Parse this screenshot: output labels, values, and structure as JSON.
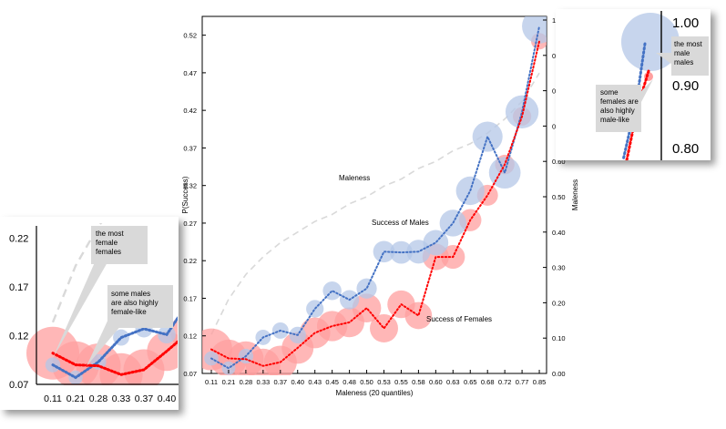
{
  "chart_data": [
    {
      "type": "scatter",
      "xlabel": "Maleness (20 quantiles)",
      "ylabel": "P(Success)",
      "y2label": "Maleness",
      "ylim": [
        0.07,
        0.545
      ],
      "yticks": [
        0.07,
        0.12,
        0.17,
        0.22,
        0.27,
        0.32,
        0.37,
        0.42,
        0.47,
        0.52
      ],
      "y2lim": [
        0,
        1
      ],
      "y2ticks": [
        0.0,
        0.1,
        0.2,
        0.3,
        0.4,
        0.5,
        0.6,
        0.7,
        0.8,
        0.9,
        1.0
      ],
      "categories": [
        "0.11",
        "0.21",
        "0.28",
        "0.33",
        "0.37",
        "0.40",
        "0.43",
        "0.45",
        "0.48",
        "0.50",
        "0.53",
        "0.55",
        "0.58",
        "0.60",
        "0.63",
        "0.65",
        "0.68",
        "0.72",
        "0.77",
        "0.85"
      ],
      "grid": false,
      "series": [
        {
          "name": "Success of Males",
          "color": "#4472c4",
          "bubble_color": "#b4c7e7",
          "values": [
            0.09,
            0.077,
            0.093,
            0.118,
            0.127,
            0.121,
            0.156,
            0.18,
            0.168,
            0.183,
            0.232,
            0.231,
            0.232,
            0.244,
            0.27,
            0.313,
            0.385,
            0.337,
            0.418,
            0.532
          ],
          "bubble_sizes": [
            0.04,
            0.03,
            0.05,
            0.06,
            0.08,
            0.09,
            0.11,
            0.14,
            0.16,
            0.19,
            0.24,
            0.28,
            0.33,
            0.4,
            0.48,
            0.58,
            0.68,
            0.78,
            0.88,
            1.0
          ]
        },
        {
          "name": "Success of Females",
          "color": "#ff0000",
          "bubble_color": "#ff9f9f",
          "values": [
            0.102,
            0.09,
            0.089,
            0.08,
            0.085,
            0.104,
            0.124,
            0.133,
            0.138,
            0.157,
            0.13,
            0.162,
            0.147,
            0.225,
            0.225,
            0.274,
            0.307,
            0.348,
            0.412,
            0.512
          ],
          "bubble_sizes": [
            1.0,
            0.75,
            0.66,
            0.6,
            0.53,
            0.48,
            0.44,
            0.42,
            0.4,
            0.36,
            0.34,
            0.32,
            0.3,
            0.28,
            0.2,
            0.16,
            0.13,
            0.1,
            0.08,
            0.05
          ]
        },
        {
          "name": "Maleness",
          "axis": "right",
          "color": "#d9d9d9",
          "values": [
            0.11,
            0.21,
            0.28,
            0.33,
            0.37,
            0.4,
            0.43,
            0.45,
            0.48,
            0.5,
            0.53,
            0.55,
            0.58,
            0.6,
            0.63,
            0.65,
            0.68,
            0.72,
            0.77,
            0.85
          ]
        }
      ],
      "annotations": [
        "Maleness",
        "Success of Males",
        "Success of Females"
      ]
    },
    {
      "type": "scatter",
      "panel": "zoom-left",
      "ylim": [
        0.07,
        0.225
      ],
      "yticks": [
        0.07,
        0.12,
        0.17,
        0.22
      ],
      "categories": [
        "0.11",
        "0.21",
        "0.28",
        "0.33",
        "0.37",
        "0.40"
      ],
      "callouts": [
        "the most\nfemale\nfemales",
        "some males\nare also highly\nfemale-like"
      ]
    },
    {
      "type": "scatter",
      "panel": "zoom-right",
      "y2lim": [
        0.78,
        1.02
      ],
      "y2ticks": [
        0.8,
        0.9,
        1.0
      ],
      "callouts": [
        "the most\nmale\nmales",
        "some\nfemales are\nalso highly\nmale-like"
      ]
    }
  ]
}
